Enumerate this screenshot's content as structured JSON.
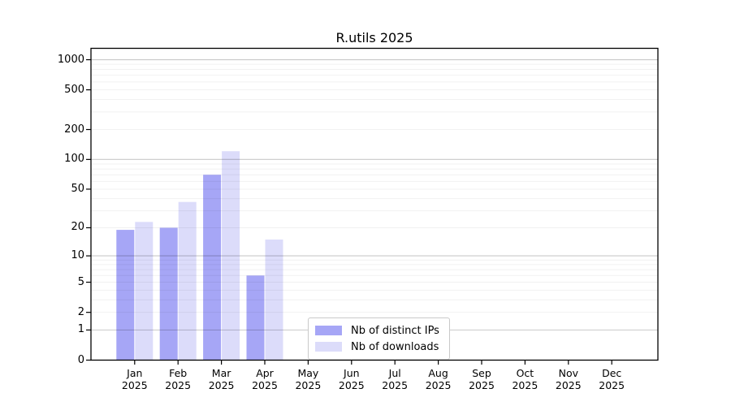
{
  "chart_data": {
    "type": "bar",
    "title": "R.utils 2025",
    "categories": [
      "Jan\n2025",
      "Feb\n2025",
      "Mar\n2025",
      "Apr\n2025",
      "May\n2025",
      "Jun\n2025",
      "Jul\n2025",
      "Aug\n2025",
      "Sep\n2025",
      "Oct\n2025",
      "Nov\n2025",
      "Dec\n2025"
    ],
    "series": [
      {
        "name": "Nb of distinct IPs",
        "color": "#a6a6f6",
        "values": [
          19,
          20,
          70,
          6,
          0,
          0,
          0,
          0,
          0,
          0,
          0,
          0
        ]
      },
      {
        "name": "Nb of downloads",
        "color": "#dcdcfa",
        "values": [
          23,
          37,
          121,
          15,
          0,
          0,
          0,
          0,
          0,
          0,
          0,
          0
        ]
      }
    ],
    "xlabel": "",
    "ylabel": "",
    "yscale": "log1p",
    "yticks": [
      0,
      1,
      2,
      5,
      10,
      20,
      50,
      100,
      200,
      500,
      1000
    ],
    "ylim": [
      0,
      1300
    ],
    "grid": "horizontal",
    "legend_position": "lower center inside",
    "colors": {
      "axis": "#000000",
      "major_grid": "rgba(0,0,0,0.21)",
      "minor_grid": "rgba(0,0,0,0.055)",
      "background": "#ffffff"
    }
  }
}
